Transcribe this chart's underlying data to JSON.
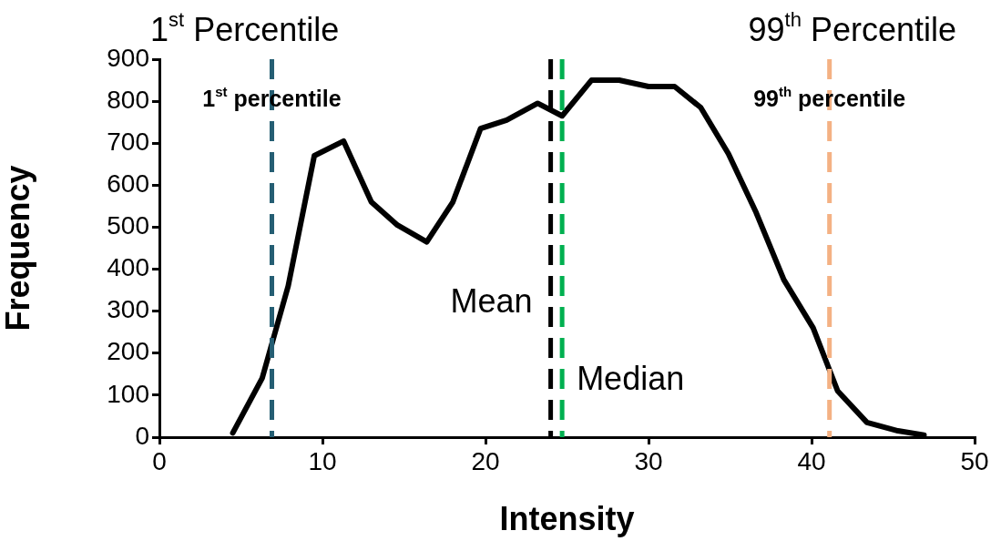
{
  "chart_data": {
    "type": "line",
    "xlabel": "Intensity",
    "ylabel": "Frequency",
    "xlim": [
      0,
      50
    ],
    "xticks": [
      0,
      10,
      20,
      30,
      40,
      50
    ],
    "ylim": [
      0,
      900
    ],
    "yticks": [
      0,
      100,
      200,
      300,
      400,
      500,
      600,
      700,
      800,
      900
    ],
    "grid": false,
    "legend": false,
    "marker": "none",
    "line_style": "solid",
    "series": [
      {
        "color": "#000000",
        "x": [
          4.5,
          6.3,
          7.9,
          9.5,
          11.3,
          13.0,
          14.6,
          16.4,
          18.0,
          19.7,
          21.3,
          23.2,
          24.7,
          26.5,
          28.2,
          30.0,
          31.6,
          33.2,
          34.9,
          36.6,
          38.3,
          40.1,
          41.6,
          43.4,
          45.3,
          46.9
        ],
        "values": [
          10,
          140,
          360,
          670,
          705,
          560,
          505,
          465,
          560,
          735,
          755,
          795,
          765,
          850,
          850,
          835,
          835,
          785,
          675,
          535,
          375,
          260,
          110,
          35,
          15,
          5
        ]
      }
    ],
    "ref_lines": [
      {
        "axis": "x",
        "value": 6.9,
        "label": "1$^{st}$ percentile",
        "color": "#255e73",
        "line_style": "dashed"
      },
      {
        "axis": "x",
        "value": 24.0,
        "label": "Mean",
        "color": "#000000",
        "line_style": "dashed"
      },
      {
        "axis": "x",
        "value": 24.7,
        "label": "Median",
        "color": "#00b050",
        "line_style": "dashed"
      },
      {
        "axis": "x",
        "value": 41.1,
        "label": "99$^{th}$ percentile",
        "color": "#f4b183",
        "line_style": "dashed"
      }
    ],
    "annotations": [
      "1$^{st}$ Percentile",
      "99$^{th}$ Percentile"
    ]
  }
}
